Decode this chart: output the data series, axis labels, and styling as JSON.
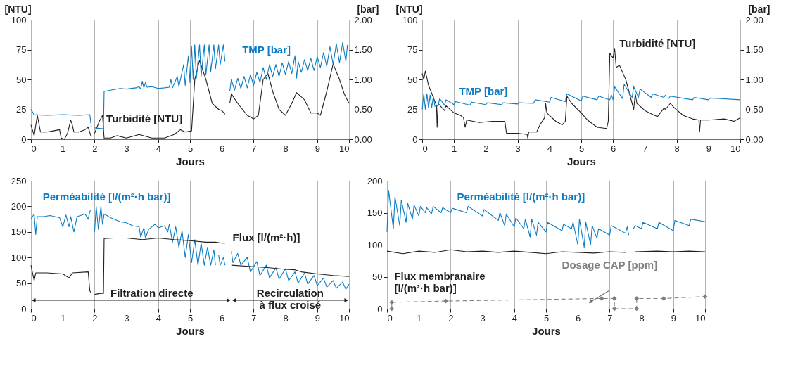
{
  "chart_data": [
    {
      "type": "line",
      "xlabel": "Jours",
      "ylabel": "[NTU]",
      "y2label": "[bar]",
      "grid": "x",
      "xlim": [
        0,
        10
      ],
      "xticks": [
        0,
        1,
        2,
        3,
        4,
        5,
        6,
        7,
        8,
        9,
        10
      ],
      "ylim": [
        0,
        100
      ],
      "yticks": [
        0,
        25,
        50,
        75,
        100
      ],
      "y2lim": [
        0,
        2
      ],
      "y2ticks": [
        {
          "value": 0,
          "label": "0.00"
        },
        {
          "value": 0.5,
          "label": "0.50"
        },
        {
          "value": 1,
          "label": "1.00"
        },
        {
          "value": 1.5,
          "label": "1.50"
        },
        {
          "value": 2,
          "label": "2.00"
        }
      ],
      "series": [
        {
          "name": "Turbidité [NTU]",
          "color": "#231f20",
          "x": [
            0,
            0.1,
            0.2,
            0.3,
            0.5,
            0.7,
            0.9,
            0.95,
            1.05,
            1.15,
            1.25,
            1.3,
            1.35,
            1.5,
            1.7,
            1.8,
            1.88,
            1.95,
            2.0,
            2.15,
            2.25,
            2.3,
            2.5,
            2.7,
            3.0,
            3.4,
            3.8,
            4.2,
            4.5,
            4.7,
            4.85,
            5.05,
            5.15,
            5.3,
            5.5,
            5.7,
            5.9,
            6.0,
            6.1,
            6.18,
            6.25,
            6.3,
            6.5,
            6.8,
            7.0,
            7.15,
            7.3,
            7.45,
            7.6,
            7.8,
            8.0,
            8.2,
            8.35,
            8.6,
            8.8,
            9.0,
            9.1,
            9.3,
            9.5,
            9.7,
            9.85,
            10
          ],
          "values": [
            12,
            3,
            20,
            6,
            6,
            7,
            8,
            1,
            0,
            5,
            16,
            12,
            6,
            6,
            8,
            10,
            3,
            null,
            5,
            15,
            20,
            1,
            1,
            3,
            1,
            4,
            1,
            1,
            4,
            8,
            6,
            7,
            50,
            66,
            50,
            30,
            25,
            24,
            21,
            null,
            30,
            38,
            30,
            20,
            17,
            20,
            50,
            55,
            40,
            25,
            20,
            30,
            39,
            33,
            22,
            22,
            20,
            40,
            63,
            50,
            38,
            30
          ]
        },
        {
          "name": "TMP [bar]",
          "color": "#0a7cc4",
          "axis": "y2",
          "x": [
            0,
            0.1,
            0.5,
            1.0,
            1.5,
            1.85,
            1.9,
            1.95,
            2.0,
            2.2,
            2.28,
            2.3,
            2.5,
            2.8,
            3.0,
            3.3,
            3.4,
            3.45,
            3.5,
            3.55,
            3.6,
            3.65,
            3.8,
            4.0,
            4.2,
            4.35,
            4.4,
            4.45,
            4.6,
            4.65,
            4.8,
            4.85,
            4.95,
            5.0,
            5.05,
            5.1,
            5.15,
            5.2,
            5.3,
            5.35,
            5.45,
            5.5,
            5.6,
            5.65,
            5.75,
            5.8,
            5.9,
            5.95,
            6.05,
            6.1,
            6.15,
            6.25,
            6.3,
            6.4,
            6.5,
            6.6,
            6.7,
            6.8,
            6.9,
            7.0,
            7.1,
            7.2,
            7.3,
            7.4,
            7.5,
            7.6,
            7.7,
            7.8,
            7.9,
            8.0,
            8.1,
            8.2,
            8.3,
            8.35,
            8.4,
            8.5,
            8.6,
            8.7,
            8.8,
            8.9,
            9.0,
            9.1,
            9.2,
            9.3,
            9.4,
            9.5,
            9.6,
            9.7,
            9.8,
            9.9,
            9.95
          ],
          "values": [
            0.5,
            0.41,
            0.4,
            0.41,
            0.4,
            0.41,
            0.2,
            null,
            0.19,
            0.18,
            0.18,
            0.8,
            0.82,
            0.85,
            0.84,
            0.86,
            0.88,
            0.84,
            0.97,
            0.86,
            0.95,
            0.87,
            0.88,
            0.85,
            0.86,
            0.87,
            1.0,
            0.86,
            1.05,
            0.88,
            1.25,
            0.9,
            1.4,
            0.95,
            1.55,
            1.0,
            1.58,
            1.02,
            1.58,
            1.05,
            1.58,
            1.08,
            1.58,
            1.12,
            1.58,
            1.18,
            1.58,
            1.25,
            1.58,
            1.3,
            null,
            0.8,
            1.0,
            0.82,
            1.02,
            0.85,
            1.05,
            0.86,
            1.08,
            0.9,
            1.12,
            0.95,
            1.2,
            1.0,
            1.25,
            1.05,
            1.25,
            1.05,
            1.28,
            1.08,
            1.3,
            1.1,
            1.4,
            1.02,
            1.3,
            1.12,
            1.33,
            1.15,
            1.35,
            1.15,
            1.38,
            1.2,
            1.45,
            1.22,
            1.55,
            1.25,
            1.6,
            1.28,
            1.62,
            1.3,
            1.58
          ]
        }
      ]
    },
    {
      "type": "line",
      "xlabel": "Jours",
      "ylabel": "[NTU]",
      "y2label": "[bar]",
      "grid": "x",
      "xlim": [
        0,
        10
      ],
      "xticks": [
        0,
        1,
        2,
        3,
        4,
        5,
        6,
        7,
        8,
        9,
        10
      ],
      "ylim": [
        0,
        100
      ],
      "yticks": [
        0,
        25,
        50,
        75,
        100
      ],
      "y2lim": [
        0,
        2
      ],
      "y2ticks": [
        {
          "value": 0,
          "label": "0.00"
        },
        {
          "value": 0.5,
          "label": "0.50"
        },
        {
          "value": 1,
          "label": "1.00"
        },
        {
          "value": 1.5,
          "label": "1.50"
        },
        {
          "value": 2,
          "label": "2.00"
        }
      ],
      "series": [
        {
          "name": "TMP [bar]",
          "color": "#0a7cc4",
          "axis": "y2",
          "x": [
            0,
            0.05,
            0.1,
            0.15,
            0.2,
            0.25,
            0.3,
            0.35,
            0.4,
            0.5,
            0.55,
            0.7,
            0.75,
            1.0,
            1.05,
            1.5,
            1.55,
            2.0,
            2.05,
            2.5,
            2.55,
            3.0,
            3.05,
            3.5,
            3.55,
            4.0,
            4.05,
            4.5,
            4.55,
            5.0,
            5.05,
            5.5,
            5.55,
            5.9,
            5.95,
            6.0,
            6.05,
            6.3,
            6.35,
            6.6,
            6.65,
            6.8,
            6.85,
            7.2,
            7.25,
            7.6,
            7.65,
            7.7,
            7.75,
            7.8,
            8.5,
            8.55,
            9.0,
            9.05,
            10
          ],
          "values": [
            0.5,
            0.76,
            0.5,
            0.76,
            0.52,
            0.74,
            0.53,
            0.72,
            0.55,
            0.56,
            0.68,
            0.57,
            0.66,
            0.58,
            0.63,
            0.57,
            0.62,
            0.58,
            0.61,
            0.58,
            0.61,
            0.59,
            0.61,
            0.6,
            0.66,
            0.62,
            0.7,
            0.63,
            0.76,
            0.64,
            0.72,
            0.66,
            0.72,
            0.66,
            0.74,
            0.66,
            0.88,
            0.68,
            0.92,
            0.7,
            0.88,
            0.7,
            0.84,
            0.7,
            0.76,
            0.7,
            0.74,
            null,
            0.68,
            0.72,
            0.66,
            0.7,
            0.66,
            0.69,
            0.66
          ]
        },
        {
          "name": "Turbidité [NTU]",
          "color": "#231f20",
          "x": [
            0,
            0.05,
            0.1,
            0.2,
            0.35,
            0.45,
            0.47,
            0.5,
            0.7,
            0.75,
            1.0,
            1.2,
            1.3,
            1.35,
            1.4,
            1.8,
            2.2,
            2.6,
            2.65,
            3.0,
            3.3,
            3.32,
            3.35,
            3.6,
            3.7,
            3.85,
            3.88,
            3.92,
            4.2,
            4.4,
            4.5,
            4.55,
            4.7,
            5.0,
            5.2,
            5.5,
            5.8,
            5.85,
            5.9,
            6.0,
            6.05,
            6.1,
            6.2,
            6.4,
            6.6,
            6.65,
            6.7,
            6.75,
            7.0,
            7.3,
            7.4,
            7.6,
            7.65,
            7.8,
            7.9,
            8.2,
            8.5,
            8.7,
            8.72,
            8.75,
            9.0,
            9.5,
            9.8,
            10
          ],
          "values": [
            55,
            50,
            57,
            45,
            35,
            28,
            10,
            30,
            24,
            28,
            22,
            20,
            18,
            10,
            16,
            14,
            15,
            15,
            5,
            5,
            4,
            1,
            6,
            6,
            12,
            18,
            30,
            22,
            15,
            12,
            15,
            36,
            30,
            22,
            16,
            10,
            9,
            15,
            72,
            68,
            76,
            60,
            62,
            50,
            30,
            25,
            38,
            30,
            24,
            20,
            19,
            26,
            25,
            30,
            27,
            20,
            17,
            16,
            6,
            16,
            16,
            17,
            15,
            18
          ]
        }
      ]
    },
    {
      "type": "line",
      "xlabel": "Jours",
      "grid": "x",
      "xlim": [
        0,
        10
      ],
      "xticks": [
        0,
        1,
        2,
        3,
        4,
        5,
        6,
        7,
        8,
        9,
        10
      ],
      "ylim": [
        0,
        250
      ],
      "yticks": [
        0,
        50,
        100,
        150,
        200,
        250
      ],
      "series": [
        {
          "name": "Perméabilité [l/(m²·h bar)]",
          "color": "#0a7cc4",
          "x": [
            0,
            0.1,
            0.15,
            0.2,
            0.4,
            0.6,
            0.9,
            1.0,
            1.1,
            1.2,
            1.25,
            1.35,
            1.45,
            1.7,
            1.8,
            1.85,
            1.9,
            1.95,
            2.0,
            2.05,
            2.12,
            2.2,
            2.25,
            2.3,
            2.5,
            2.8,
            3.0,
            3.2,
            3.4,
            3.45,
            3.55,
            3.6,
            3.7,
            3.9,
            4.0,
            4.2,
            4.3,
            4.35,
            4.45,
            4.55,
            4.65,
            4.75,
            4.85,
            4.95,
            5.05,
            5.15,
            5.25,
            5.35,
            5.45,
            5.55,
            5.65,
            5.75,
            5.8,
            5.85,
            5.9,
            5.95,
            6.05,
            6.1,
            6.15,
            6.3,
            6.35,
            6.5,
            6.6,
            6.8,
            6.9,
            7.1,
            7.2,
            7.4,
            7.5,
            7.7,
            7.8,
            8.0,
            8.1,
            8.3,
            8.4,
            8.6,
            8.7,
            8.9,
            9.0,
            9.2,
            9.3,
            9.5,
            9.6,
            9.8,
            9.9,
            10
          ],
          "values": [
            175,
            185,
            145,
            180,
            180,
            182,
            178,
            160,
            183,
            160,
            180,
            150,
            180,
            185,
            175,
            190,
            193,
            null,
            150,
            200,
            155,
            200,
            165,
            185,
            178,
            170,
            168,
            162,
            160,
            140,
            158,
            138,
            155,
            165,
            158,
            162,
            150,
            165,
            130,
            160,
            120,
            152,
            100,
            145,
            90,
            135,
            85,
            128,
            85,
            120,
            85,
            115,
            85,
            null,
            105,
            85,
            100,
            85,
            null,
            112,
            90,
            108,
            85,
            100,
            72,
            92,
            65,
            85,
            60,
            80,
            58,
            78,
            55,
            72,
            50,
            70,
            48,
            65,
            45,
            60,
            42,
            55,
            40,
            52,
            38,
            48
          ]
        },
        {
          "name": "Flux [l/(m²·h)]",
          "color": "#231f20",
          "x": [
            0,
            0.05,
            0.1,
            0.15,
            0.5,
            1.0,
            1.2,
            1.3,
            1.8,
            1.85,
            1.9,
            1.95,
            2.0,
            2.2,
            2.28,
            2.3,
            2.6,
            3.0,
            3.5,
            4.0,
            4.5,
            5.0,
            5.5,
            5.8,
            6.0,
            6.1,
            6.15,
            6.3,
            7.0,
            7.5,
            8.0,
            8.3,
            8.5,
            9.0,
            9.5,
            10
          ],
          "values": [
            85,
            70,
            55,
            70,
            70,
            68,
            60,
            70,
            72,
            35,
            30,
            null,
            28,
            30,
            30,
            137,
            138,
            138,
            135,
            138,
            135,
            133,
            130,
            130,
            128,
            128,
            null,
            85,
            82,
            80,
            77,
            76,
            72,
            68,
            65,
            63
          ]
        }
      ],
      "annotations": [
        "Filtration directe",
        "Recirculation\nà flux croisé"
      ]
    },
    {
      "type": "line",
      "xlabel": "Jours",
      "grid": "x",
      "xlim": [
        0,
        10
      ],
      "xticks": [
        0,
        1,
        2,
        3,
        4,
        5,
        6,
        7,
        8,
        9,
        10
      ],
      "ylim": [
        0,
        200
      ],
      "yticks": [
        0,
        50,
        100,
        150,
        200
      ],
      "series": [
        {
          "name": "Perméabilité [l/(m²·h bar)]",
          "color": "#0a7cc4",
          "x": [
            0,
            0.05,
            0.2,
            0.25,
            0.4,
            0.45,
            0.6,
            0.65,
            0.8,
            0.85,
            1.0,
            1.05,
            1.2,
            1.25,
            1.4,
            1.45,
            1.7,
            1.75,
            2.0,
            2.05,
            2.5,
            2.55,
            3.0,
            3.05,
            3.5,
            3.55,
            3.7,
            3.75,
            4.0,
            4.05,
            4.3,
            4.35,
            4.5,
            4.55,
            4.7,
            4.75,
            5.0,
            5.05,
            5.5,
            5.55,
            5.8,
            5.85,
            6.0,
            6.05,
            6.2,
            6.25,
            6.4,
            6.45,
            6.6,
            6.65,
            7.0,
            7.05,
            7.5,
            7.55,
            7.6,
            7.7,
            7.75,
            7.8,
            8.0,
            8.05,
            8.5,
            8.55,
            9.0,
            9.05,
            9.5,
            9.55,
            10
          ],
          "values": [
            120,
            185,
            125,
            175,
            130,
            170,
            135,
            165,
            140,
            162,
            145,
            160,
            150,
            158,
            148,
            160,
            150,
            158,
            150,
            157,
            150,
            160,
            145,
            155,
            138,
            150,
            130,
            148,
            128,
            142,
            125,
            140,
            112,
            140,
            115,
            135,
            120,
            135,
            122,
            132,
            125,
            135,
            100,
            140,
            96,
            135,
            100,
            130,
            110,
            125,
            115,
            130,
            118,
            128,
            115,
            null,
            125,
            130,
            125,
            135,
            125,
            135,
            122,
            138,
            130,
            140,
            136
          ]
        },
        {
          "name": "Flux membranaire\n[l/(m²·h bar)]",
          "color": "#231f20",
          "x": [
            0,
            0.5,
            1.0,
            1.5,
            2.0,
            2.5,
            3.0,
            3.5,
            4.0,
            4.5,
            5.0,
            5.5,
            6.0,
            6.5,
            7.0,
            7.5,
            7.7,
            7.8,
            8.5,
            9.0,
            9.5,
            10
          ],
          "values": [
            90,
            86,
            90,
            88,
            92,
            89,
            90,
            88,
            90,
            88,
            86,
            89,
            88,
            87,
            89,
            88,
            null,
            89,
            90,
            89,
            90,
            89
          ]
        },
        {
          "name": "Dosage CAP [ppm]",
          "color": "#7f7f7f",
          "marker": "diamond",
          "line_style": "dashed",
          "x": [
            0.15,
            0.15,
            1.85,
            6.75,
            7.15,
            7.15,
            7.85,
            7.85,
            8.7,
            10
          ],
          "values": [
            0,
            10,
            12,
            16,
            16,
            0,
            0,
            16,
            16,
            19
          ]
        }
      ]
    }
  ]
}
